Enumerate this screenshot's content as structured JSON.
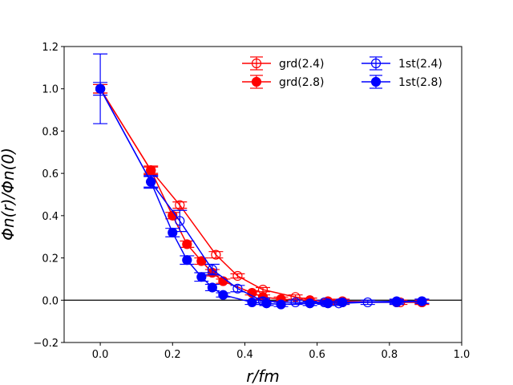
{
  "chart_data": {
    "type": "scatter",
    "title": "",
    "xlabel": "r/fm",
    "ylabel": "Φn(r)/Φn(0)",
    "xlim": [
      -0.1,
      1.0
    ],
    "ylim": [
      -0.2,
      1.2
    ],
    "xticks": [
      0.0,
      0.2,
      0.4,
      0.6,
      0.8,
      1.0
    ],
    "xtick_labels": [
      "0.0",
      "0.2",
      "0.4",
      "0.6",
      "0.8",
      "1.0"
    ],
    "yticks": [
      -0.2,
      0.0,
      0.2,
      0.4,
      0.6,
      0.8,
      1.0,
      1.2
    ],
    "ytick_labels": [
      "−0.2",
      "0.0",
      "0.2",
      "0.4",
      "0.6",
      "0.8",
      "1.0",
      "1.2"
    ],
    "grid": false,
    "hline_y": 0.0,
    "legend_position": "top-right",
    "legend_columns": 2,
    "series": [
      {
        "name": "grd(2.4)",
        "color": "#ff0000",
        "marker": "open-circle",
        "x": [
          0.0,
          0.14,
          0.22,
          0.32,
          0.38,
          0.45,
          0.54,
          0.63,
          0.67,
          0.83,
          0.89
        ],
        "y": [
          1.0,
          0.615,
          0.45,
          0.215,
          0.115,
          0.05,
          0.015,
          -0.01,
          -0.005,
          -0.01,
          -0.01
        ],
        "err": [
          0.02,
          0.02,
          0.015,
          0.015,
          0.01,
          0.01,
          0.01,
          0.01,
          0.01,
          0.01,
          0.01
        ]
      },
      {
        "name": "grd(2.8)",
        "color": "#ff0000",
        "marker": "filled-circle",
        "x": [
          0.0,
          0.14,
          0.2,
          0.24,
          0.28,
          0.31,
          0.34,
          0.42,
          0.45,
          0.5,
          0.58,
          0.63,
          0.67,
          0.82,
          0.89
        ],
        "y": [
          1.0,
          0.615,
          0.4,
          0.265,
          0.185,
          0.13,
          0.09,
          0.035,
          0.015,
          0.005,
          0.0,
          -0.005,
          -0.01,
          -0.01,
          -0.01
        ],
        "err": [
          0.02,
          0.015,
          0.015,
          0.015,
          0.015,
          0.015,
          0.01,
          0.01,
          0.01,
          0.01,
          0.01,
          0.01,
          0.01,
          0.01,
          0.01
        ]
      },
      {
        "name": "1st(2.4)",
        "color": "#0000ff",
        "marker": "open-circle",
        "x": [
          0.0,
          0.14,
          0.22,
          0.31,
          0.38,
          0.45,
          0.54,
          0.62,
          0.66,
          0.74,
          0.82,
          0.89
        ],
        "y": [
          1.0,
          0.56,
          0.375,
          0.145,
          0.055,
          -0.005,
          -0.01,
          -0.01,
          -0.015,
          -0.01,
          -0.01,
          -0.005
        ],
        "err": [
          0.165,
          0.03,
          0.05,
          0.025,
          0.015,
          0.015,
          0.01,
          0.01,
          0.01,
          0.01,
          0.01,
          0.01
        ]
      },
      {
        "name": "1st(2.8)",
        "color": "#0000ff",
        "marker": "filled-circle",
        "x": [
          0.0,
          0.14,
          0.2,
          0.24,
          0.28,
          0.31,
          0.34,
          0.42,
          0.46,
          0.5,
          0.58,
          0.63,
          0.67,
          0.82,
          0.89
        ],
        "y": [
          1.0,
          0.56,
          0.32,
          0.19,
          0.11,
          0.06,
          0.025,
          -0.01,
          -0.015,
          -0.02,
          -0.015,
          -0.015,
          -0.01,
          -0.005,
          -0.005
        ],
        "err": [
          0.03,
          0.025,
          0.02,
          0.02,
          0.02,
          0.015,
          0.01,
          0.01,
          0.01,
          0.01,
          0.01,
          0.01,
          0.01,
          0.01,
          0.01
        ]
      }
    ]
  }
}
